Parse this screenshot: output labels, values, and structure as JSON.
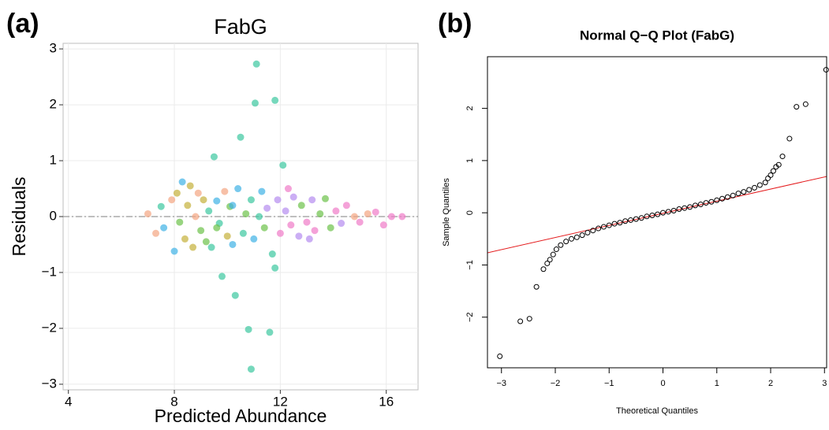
{
  "chart_data": [
    {
      "type": "scatter",
      "panel_label": "(a)",
      "title": "FabG",
      "x_label": "Predicted Abundance",
      "y_label": "Residuals",
      "xlim": [
        3.8,
        17.2
      ],
      "xticks": [
        4,
        8,
        12,
        16
      ],
      "ylim": [
        -3.1,
        3.1
      ],
      "yticks": [
        {
          "value": -3,
          "label": "−3"
        },
        {
          "value": -2,
          "label": "−2"
        },
        {
          "value": -1,
          "label": "−1"
        },
        0,
        1,
        2,
        3
      ],
      "grid": true,
      "reference_line": 0,
      "x": [
        7.0,
        7.3,
        7.5,
        7.6,
        7.9,
        8.0,
        8.1,
        8.2,
        8.3,
        8.4,
        8.5,
        8.6,
        8.7,
        8.8,
        8.9,
        9.0,
        9.1,
        9.2,
        9.3,
        9.4,
        9.5,
        9.6,
        9.7,
        9.8,
        9.9,
        10.0,
        10.1,
        10.2,
        10.3,
        10.4,
        10.5,
        10.6,
        10.7,
        10.8,
        10.9,
        10.9,
        11.0,
        11.05,
        11.1,
        11.2,
        11.3,
        11.4,
        11.5,
        11.6,
        11.7,
        11.8,
        11.8,
        11.9,
        12.0,
        12.1,
        12.2,
        12.4,
        12.5,
        12.7,
        12.8,
        13.0,
        13.2,
        13.3,
        13.5,
        13.7,
        13.9,
        14.1,
        14.3,
        14.5,
        14.8,
        15.0,
        15.3,
        15.6,
        15.9,
        16.2,
        16.6,
        12.3,
        13.1,
        10.2,
        9.6
      ],
      "values": [
        0.05,
        -0.3,
        0.18,
        -0.2,
        0.3,
        -0.62,
        0.42,
        -0.1,
        0.62,
        -0.4,
        0.2,
        0.55,
        -0.55,
        0.0,
        0.42,
        -0.25,
        0.3,
        -0.45,
        0.1,
        -0.55,
        1.07,
        0.28,
        -0.12,
        -1.07,
        0.45,
        -0.35,
        0.18,
        -0.5,
        -1.41,
        0.5,
        1.42,
        -0.3,
        0.05,
        -2.02,
        -2.73,
        0.3,
        -0.4,
        2.03,
        2.73,
        0.0,
        0.45,
        -0.2,
        0.15,
        -2.07,
        -0.67,
        2.08,
        -0.92,
        0.3,
        -0.3,
        0.92,
        0.1,
        -0.15,
        0.35,
        -0.35,
        0.2,
        -0.1,
        0.3,
        -0.25,
        0.05,
        0.32,
        -0.2,
        0.1,
        -0.12,
        0.2,
        0.0,
        -0.1,
        0.05,
        0.08,
        -0.15,
        0.0,
        0.0,
        0.5,
        -0.4,
        0.2,
        -0.2
      ],
      "colors": [
        "#f4a582",
        "#f4a582",
        "#3cc8a0",
        "#3fb2e6",
        "#f4a582",
        "#3fb2e6",
        "#c5b03a",
        "#6cc24a",
        "#3fb2e6",
        "#c5b03a",
        "#c5b03a",
        "#c5b03a",
        "#c5b03a",
        "#f4a582",
        "#f4a582",
        "#6cc24a",
        "#c5b03a",
        "#6cc24a",
        "#3cc8a0",
        "#3cc8a0",
        "#3cc8a0",
        "#3fb2e6",
        "#3cc8a0",
        "#3cc8a0",
        "#f4a582",
        "#c5b03a",
        "#6cc24a",
        "#3fb2e6",
        "#3cc8a0",
        "#3fb2e6",
        "#3cc8a0",
        "#3cc8a0",
        "#6cc24a",
        "#3cc8a0",
        "#3cc8a0",
        "#3cc8a0",
        "#3fb2e6",
        "#3cc8a0",
        "#3cc8a0",
        "#3cc8a0",
        "#3fb2e6",
        "#6cc24a",
        "#b58cf0",
        "#3cc8a0",
        "#3cc8a0",
        "#3cc8a0",
        "#3cc8a0",
        "#b58cf0",
        "#f07ac8",
        "#3cc8a0",
        "#b58cf0",
        "#f07ac8",
        "#b58cf0",
        "#b58cf0",
        "#6cc24a",
        "#f07ac8",
        "#b58cf0",
        "#f07ac8",
        "#6cc24a",
        "#6cc24a",
        "#6cc24a",
        "#f07ac8",
        "#b58cf0",
        "#f07ac8",
        "#f4a582",
        "#f07ac8",
        "#f4a582",
        "#f07ac8",
        "#f07ac8",
        "#f07ac8",
        "#f07ac8",
        "#f07ac8",
        "#b58cf0",
        "#3fb2e6",
        "#6cc24a"
      ]
    },
    {
      "type": "qq",
      "panel_label": "(b)",
      "title": "Normal Q−Q Plot (FabG)",
      "x_label": "Theoretical Quantiles",
      "y_label": "Sample Quantiles",
      "xlim": [
        -3.26,
        3.04
      ],
      "xticks": [
        {
          "value": -3,
          "label": "−3"
        },
        {
          "value": -2,
          "label": "−2"
        },
        {
          "value": -1,
          "label": "−1"
        },
        0,
        1,
        2,
        3
      ],
      "ylim": [
        -2.97,
        2.99
      ],
      "yticks": [
        {
          "value": -2,
          "label": "−2"
        },
        {
          "value": -1,
          "label": "−1"
        },
        0,
        1,
        2
      ],
      "grid": false,
      "line_color": "#e41a1c",
      "point_color": "#000000",
      "qq_line": {
        "intercept": -0.01,
        "slope": 0.232
      },
      "x": [
        -3.03,
        -2.65,
        -2.48,
        -2.35,
        -2.22,
        -2.15,
        -2.1,
        -2.04,
        -1.98,
        -1.9,
        -1.8,
        -1.7,
        -1.6,
        -1.5,
        -1.4,
        -1.3,
        -1.2,
        -1.1,
        -1.0,
        -0.9,
        -0.8,
        -0.7,
        -0.6,
        -0.5,
        -0.4,
        -0.3,
        -0.2,
        -0.1,
        0,
        0.1,
        0.2,
        0.3,
        0.4,
        0.5,
        0.6,
        0.7,
        0.8,
        0.9,
        1.0,
        1.1,
        1.2,
        1.3,
        1.4,
        1.5,
        1.6,
        1.7,
        1.8,
        1.9,
        1.95,
        2.0,
        2.05,
        2.1,
        2.15,
        2.22,
        2.35,
        2.48,
        2.65,
        3.03
      ],
      "values": [
        -2.75,
        -2.08,
        -2.03,
        -1.42,
        -1.08,
        -0.97,
        -0.9,
        -0.8,
        -0.7,
        -0.62,
        -0.55,
        -0.5,
        -0.47,
        -0.43,
        -0.38,
        -0.34,
        -0.3,
        -0.27,
        -0.24,
        -0.21,
        -0.19,
        -0.16,
        -0.14,
        -0.12,
        -0.1,
        -0.07,
        -0.05,
        -0.03,
        0,
        0.02,
        0.04,
        0.07,
        0.09,
        0.11,
        0.14,
        0.16,
        0.19,
        0.21,
        0.24,
        0.27,
        0.3,
        0.33,
        0.37,
        0.4,
        0.44,
        0.48,
        0.53,
        0.58,
        0.66,
        0.72,
        0.8,
        0.88,
        0.92,
        1.08,
        1.42,
        2.03,
        2.08,
        2.74
      ]
    }
  ]
}
